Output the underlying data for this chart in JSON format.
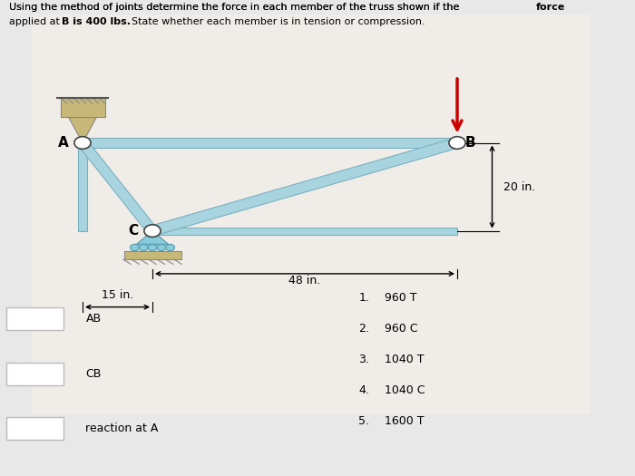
{
  "bg_color": "#e8e8e8",
  "panel_color": "#f0ede8",
  "truss_color": "#a8d4e0",
  "truss_edge_color": "#7ab0c0",
  "joints": {
    "A": [
      0.13,
      0.7
    ],
    "B": [
      0.72,
      0.7
    ],
    "C": [
      0.24,
      0.515
    ]
  },
  "dim_15": "15 in.",
  "dim_48": "48 in.",
  "dim_20": "20 in.",
  "title_line1": "Using the method of joints determine the force in each member of the truss shown if the ",
  "title_bold_word": "force",
  "title_line2_pre": "applied at ",
  "title_bold2": "B is 400 lbs.",
  "title_line2_post": "State whether each member is in tension or compression.",
  "answers": [
    [
      "1.",
      "960 T"
    ],
    [
      "2.",
      "960 C"
    ],
    [
      "3.",
      "1040 T"
    ],
    [
      "4.",
      "1040 C"
    ],
    [
      "5.",
      "1600 T"
    ]
  ],
  "dropdown_labels": [
    "AB",
    "CB",
    "reaction at A"
  ],
  "wall_color": "#c8b878",
  "support_color": "#c8b878",
  "roller_color": "#88ccdd"
}
